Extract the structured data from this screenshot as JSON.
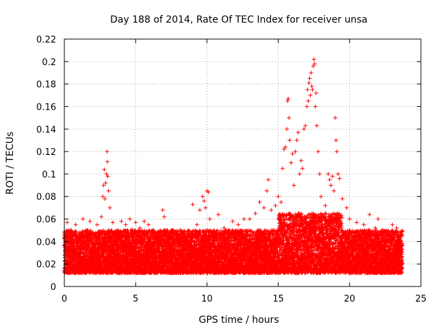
{
  "chart_data": {
    "type": "scatter",
    "title": "Day 188 of 2014, Rate Of TEC Index for receiver unsa",
    "xlabel": "GPS time / hours",
    "ylabel": "ROTI / TECUs",
    "xlim": [
      0,
      25
    ],
    "ylim": [
      0,
      0.22
    ],
    "xticks": [
      0,
      5,
      10,
      15,
      20,
      25
    ],
    "xtick_labels": [
      "0",
      "5",
      "10",
      "15",
      "20",
      "25"
    ],
    "yticks": [
      0,
      0.02,
      0.04,
      0.06,
      0.08,
      0.1,
      0.12,
      0.14,
      0.16,
      0.18,
      0.2,
      0.22
    ],
    "ytick_labels": [
      "0",
      "0.02",
      "0.04",
      "0.06",
      "0.08",
      "0.1",
      "0.12",
      "0.14",
      "0.16",
      "0.18",
      "0.2",
      "0.22"
    ],
    "grid": true,
    "marker": "+",
    "series_color": "#ff0000",
    "series": [
      {
        "name": "ROTI",
        "points": [
          [
            0.1,
            0.045
          ],
          [
            0.2,
            0.057
          ],
          [
            0.3,
            0.038
          ],
          [
            0.5,
            0.05
          ],
          [
            0.8,
            0.055
          ],
          [
            1.0,
            0.042
          ],
          [
            1.3,
            0.06
          ],
          [
            1.5,
            0.05
          ],
          [
            1.8,
            0.058
          ],
          [
            2.0,
            0.048
          ],
          [
            2.3,
            0.055
          ],
          [
            2.6,
            0.062
          ],
          [
            2.7,
            0.08
          ],
          [
            2.75,
            0.09
          ],
          [
            2.8,
            0.104
          ],
          [
            2.85,
            0.078
          ],
          [
            2.9,
            0.092
          ],
          [
            2.95,
            0.1
          ],
          [
            3.0,
            0.12
          ],
          [
            3.02,
            0.111
          ],
          [
            3.05,
            0.098
          ],
          [
            3.1,
            0.085
          ],
          [
            3.2,
            0.07
          ],
          [
            3.4,
            0.057
          ],
          [
            3.7,
            0.05
          ],
          [
            4.0,
            0.058
          ],
          [
            4.3,
            0.055
          ],
          [
            4.6,
            0.06
          ],
          [
            5.0,
            0.057
          ],
          [
            5.3,
            0.052
          ],
          [
            5.6,
            0.058
          ],
          [
            5.9,
            0.055
          ],
          [
            6.2,
            0.05
          ],
          [
            6.5,
            0.047
          ],
          [
            6.9,
            0.068
          ],
          [
            7.0,
            0.062
          ],
          [
            7.3,
            0.048
          ],
          [
            7.6,
            0.05
          ],
          [
            8.0,
            0.047
          ],
          [
            8.4,
            0.045
          ],
          [
            8.7,
            0.05
          ],
          [
            9.0,
            0.073
          ],
          [
            9.3,
            0.055
          ],
          [
            9.5,
            0.068
          ],
          [
            9.7,
            0.08
          ],
          [
            9.8,
            0.076
          ],
          [
            9.9,
            0.07
          ],
          [
            10.0,
            0.085
          ],
          [
            10.1,
            0.084
          ],
          [
            10.2,
            0.06
          ],
          [
            10.5,
            0.05
          ],
          [
            10.8,
            0.064
          ],
          [
            11.2,
            0.052
          ],
          [
            11.5,
            0.05
          ],
          [
            11.8,
            0.058
          ],
          [
            12.2,
            0.055
          ],
          [
            12.6,
            0.06
          ],
          [
            13.0,
            0.06
          ],
          [
            13.4,
            0.065
          ],
          [
            13.7,
            0.075
          ],
          [
            14.0,
            0.07
          ],
          [
            14.2,
            0.085
          ],
          [
            14.3,
            0.095
          ],
          [
            14.5,
            0.068
          ],
          [
            14.8,
            0.072
          ],
          [
            15.0,
            0.08
          ],
          [
            15.2,
            0.075
          ],
          [
            15.3,
            0.105
          ],
          [
            15.4,
            0.122
          ],
          [
            15.5,
            0.124
          ],
          [
            15.6,
            0.14
          ],
          [
            15.65,
            0.165
          ],
          [
            15.7,
            0.167
          ],
          [
            15.75,
            0.15
          ],
          [
            15.8,
            0.13
          ],
          [
            15.9,
            0.11
          ],
          [
            16.0,
            0.118
          ],
          [
            16.1,
            0.09
          ],
          [
            16.2,
            0.12
          ],
          [
            16.3,
            0.13
          ],
          [
            16.4,
            0.137
          ],
          [
            16.5,
            0.1
          ],
          [
            16.6,
            0.112
          ],
          [
            16.7,
            0.105
          ],
          [
            16.8,
            0.14
          ],
          [
            16.9,
            0.143
          ],
          [
            17.0,
            0.16
          ],
          [
            17.05,
            0.175
          ],
          [
            17.1,
            0.165
          ],
          [
            17.15,
            0.181
          ],
          [
            17.2,
            0.185
          ],
          [
            17.25,
            0.17
          ],
          [
            17.3,
            0.19
          ],
          [
            17.35,
            0.178
          ],
          [
            17.4,
            0.175
          ],
          [
            17.45,
            0.196
          ],
          [
            17.5,
            0.202
          ],
          [
            17.55,
            0.198
          ],
          [
            17.6,
            0.16
          ],
          [
            17.65,
            0.172
          ],
          [
            17.7,
            0.143
          ],
          [
            17.8,
            0.12
          ],
          [
            17.9,
            0.1
          ],
          [
            18.0,
            0.08
          ],
          [
            18.3,
            0.072
          ],
          [
            18.5,
            0.1
          ],
          [
            18.6,
            0.095
          ],
          [
            18.7,
            0.09
          ],
          [
            18.8,
            0.098
          ],
          [
            18.9,
            0.085
          ],
          [
            19.0,
            0.15
          ],
          [
            19.05,
            0.13
          ],
          [
            19.1,
            0.12
          ],
          [
            19.2,
            0.1
          ],
          [
            19.3,
            0.096
          ],
          [
            19.5,
            0.078
          ],
          [
            19.8,
            0.07
          ],
          [
            20.0,
            0.06
          ],
          [
            20.5,
            0.057
          ],
          [
            21.0,
            0.055
          ],
          [
            21.4,
            0.064
          ],
          [
            21.8,
            0.052
          ],
          [
            22.0,
            0.06
          ],
          [
            22.3,
            0.05
          ],
          [
            22.8,
            0.048
          ],
          [
            23.0,
            0.055
          ],
          [
            23.3,
            0.052
          ],
          [
            23.6,
            0.04
          ]
        ]
      }
    ]
  }
}
